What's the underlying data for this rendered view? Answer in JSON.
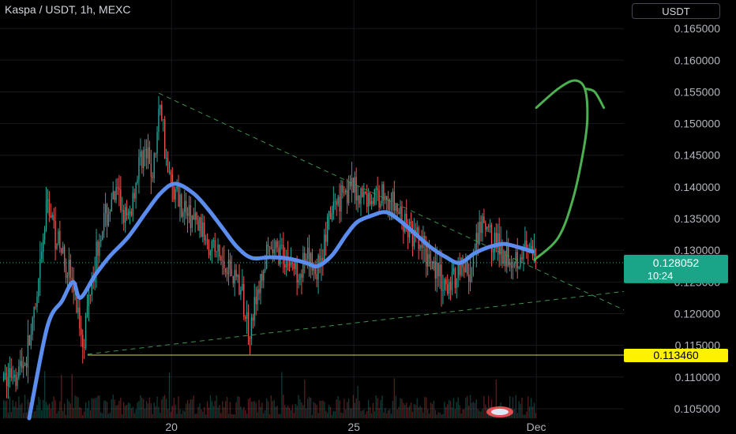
{
  "header": {
    "title": "Kaspa / USDT, 1h, MEXC",
    "currency_button": "USDT"
  },
  "colors": {
    "background": "#000000",
    "grid": "#17191f",
    "up": "#26a69a",
    "down": "#ef5350",
    "ma_line": "#5b8def",
    "trendline": "#3f8f4f",
    "drawing": "#4caf50",
    "support_line": "#d8d84a",
    "price_badge": "#1aa589",
    "support_badge": "#fff200",
    "axis_text": "#b2b5be"
  },
  "chart_data": {
    "type": "candlestick",
    "instrument": "Kaspa / USDT",
    "interval": "1h",
    "exchange": "MEXC",
    "y_axis": {
      "range": [
        0.1035,
        0.1695
      ],
      "ticks": [
        "0.165000",
        "0.160000",
        "0.155000",
        "0.150000",
        "0.145000",
        "0.140000",
        "0.135000",
        "0.130000",
        "0.125000",
        "0.120000",
        "0.115000",
        "0.110000",
        "0.105000"
      ]
    },
    "x_axis": {
      "ticks": [
        {
          "label": "20",
          "day": 20
        },
        {
          "label": "25",
          "day": 25
        },
        {
          "label": "Dec",
          "day": 30
        }
      ],
      "range_days": [
        15.3,
        32.4
      ]
    },
    "current_price": {
      "value": 0.128052,
      "label": "0.128052",
      "countdown": "10:24"
    },
    "support_level": {
      "value": 0.11346,
      "label": "0.113460"
    },
    "price_path": [
      [
        15.4,
        0.1095
      ],
      [
        16.0,
        0.1125
      ],
      [
        16.3,
        0.121
      ],
      [
        16.6,
        0.138
      ],
      [
        16.9,
        0.131
      ],
      [
        17.2,
        0.127
      ],
      [
        17.4,
        0.121
      ],
      [
        17.6,
        0.116
      ],
      [
        17.8,
        0.126
      ],
      [
        18.1,
        0.134
      ],
      [
        18.5,
        0.139
      ],
      [
        18.8,
        0.134
      ],
      [
        19.2,
        0.146
      ],
      [
        19.5,
        0.142
      ],
      [
        19.7,
        0.154
      ],
      [
        19.9,
        0.142
      ],
      [
        20.3,
        0.137
      ],
      [
        20.7,
        0.134
      ],
      [
        21.0,
        0.132
      ],
      [
        21.4,
        0.128
      ],
      [
        21.8,
        0.126
      ],
      [
        22.1,
        0.118
      ],
      [
        22.3,
        0.121
      ],
      [
        22.6,
        0.129
      ],
      [
        23.0,
        0.13
      ],
      [
        23.4,
        0.127
      ],
      [
        23.8,
        0.128
      ],
      [
        24.0,
        0.127
      ],
      [
        24.4,
        0.136
      ],
      [
        24.7,
        0.14
      ],
      [
        25.1,
        0.139
      ],
      [
        25.5,
        0.138
      ],
      [
        25.8,
        0.139
      ],
      [
        26.1,
        0.137
      ],
      [
        26.5,
        0.133
      ],
      [
        26.9,
        0.13
      ],
      [
        27.2,
        0.128
      ],
      [
        27.5,
        0.123
      ],
      [
        27.9,
        0.128
      ],
      [
        28.2,
        0.126
      ],
      [
        28.5,
        0.134
      ],
      [
        28.9,
        0.131
      ],
      [
        29.3,
        0.129
      ],
      [
        29.7,
        0.13
      ],
      [
        30.0,
        0.1275
      ]
    ],
    "annotations": {
      "moving_average": [
        [
          16.1,
          0.1035
        ],
        [
          16.6,
          0.118
        ],
        [
          17.0,
          0.122
        ],
        [
          17.3,
          0.125
        ],
        [
          17.5,
          0.1225
        ],
        [
          17.9,
          0.126
        ],
        [
          18.3,
          0.129
        ],
        [
          18.8,
          0.132
        ],
        [
          19.3,
          0.136
        ],
        [
          19.7,
          0.139
        ],
        [
          20.1,
          0.1405
        ],
        [
          20.6,
          0.139
        ],
        [
          21.0,
          0.1365
        ],
        [
          21.4,
          0.1335
        ],
        [
          21.8,
          0.1305
        ],
        [
          22.2,
          0.1288
        ],
        [
          22.7,
          0.1289
        ],
        [
          23.2,
          0.1287
        ],
        [
          23.7,
          0.128
        ],
        [
          24.0,
          0.1275
        ],
        [
          24.4,
          0.1292
        ],
        [
          24.8,
          0.1325
        ],
        [
          25.1,
          0.1345
        ],
        [
          25.5,
          0.1355
        ],
        [
          25.9,
          0.136
        ],
        [
          26.3,
          0.1345
        ],
        [
          26.7,
          0.1325
        ],
        [
          27.1,
          0.1305
        ],
        [
          27.5,
          0.129
        ],
        [
          27.9,
          0.128
        ],
        [
          28.3,
          0.1295
        ],
        [
          28.7,
          0.1305
        ],
        [
          29.1,
          0.131
        ],
        [
          29.5,
          0.1305
        ],
        [
          29.9,
          0.1298
        ]
      ],
      "upper_trendline": [
        [
          19.65,
          0.1548
        ],
        [
          32.4,
          0.1206
        ]
      ],
      "lower_trendline": [
        [
          17.7,
          0.1136
        ],
        [
          32.4,
          0.1235
        ]
      ],
      "projection_arrow": [
        [
          29.95,
          0.1285
        ],
        [
          30.6,
          0.132
        ],
        [
          31.0,
          0.138
        ],
        [
          31.3,
          0.146
        ],
        [
          31.4,
          0.151
        ],
        [
          31.33,
          0.1555
        ],
        [
          31.05,
          0.1568
        ],
        [
          30.6,
          0.1555
        ],
        [
          30.0,
          0.1525
        ]
      ],
      "projection_hook": [
        [
          31.33,
          0.1555
        ],
        [
          31.6,
          0.155
        ],
        [
          31.85,
          0.1525
        ]
      ]
    }
  }
}
